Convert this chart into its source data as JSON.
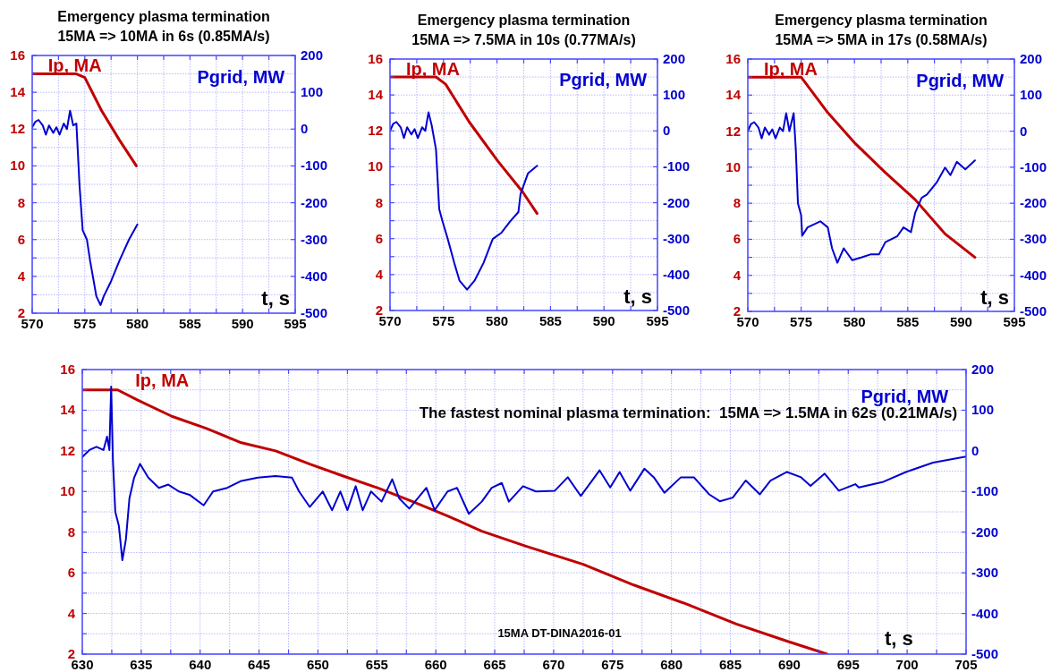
{
  "chart_data": [
    {
      "type": "line",
      "title": "Emergency plasma termination",
      "subtitle": "15MA => 10MA in 6s (0.85MA/s)",
      "xlabel": "t, s",
      "grid": true,
      "legend": "top",
      "xlim": [
        570,
        595
      ],
      "xticks": [
        570,
        {
          "value": 572.5,
          "label": null
        },
        575,
        {
          "value": 577.5,
          "label": null
        },
        580,
        {
          "value": 582.5,
          "label": null
        },
        585,
        {
          "value": 587.5,
          "label": null
        },
        590,
        {
          "value": 592.5,
          "label": null
        },
        595
      ],
      "ylim": [
        2,
        16
      ],
      "yticks": [
        2,
        {
          "value": 3,
          "label": null
        },
        4,
        {
          "value": 5,
          "label": null
        },
        6,
        {
          "value": 7,
          "label": null
        },
        8,
        {
          "value": 9,
          "label": null
        },
        10,
        {
          "value": 11,
          "label": null
        },
        12,
        {
          "value": 13,
          "label": null
        },
        14,
        {
          "value": 15,
          "label": null
        },
        16
      ],
      "y2lim": [
        -500,
        200
      ],
      "y2ticks": [
        -500,
        -400,
        -300,
        -200,
        -100,
        0,
        100,
        200
      ],
      "series": [
        {
          "name": "Ip, MA",
          "color": "#c00000",
          "x": [
            570,
            574.2,
            575,
            576.6,
            578.3,
            579.9
          ],
          "values": [
            15,
            15,
            14.8,
            13.0,
            11.4,
            10.0
          ]
        },
        {
          "name": "Pgrid, MW",
          "color": "#0000d0",
          "axis": "y2",
          "x": [
            570,
            570.3,
            570.6,
            571,
            571.3,
            571.6,
            572,
            572.3,
            572.6,
            573,
            573.3,
            573.6,
            573.9,
            574.2,
            574.5,
            574.8,
            575.2,
            575.5,
            576.1,
            576.5,
            576.8,
            577.5,
            578.3,
            579.2,
            580
          ],
          "values": [
            5,
            20,
            25,
            10,
            -15,
            10,
            -10,
            5,
            -15,
            15,
            0,
            50,
            10,
            15,
            -153,
            -275,
            -300,
            -357,
            -454,
            -478,
            -454,
            -413,
            -357,
            -300,
            -259
          ]
        }
      ]
    },
    {
      "type": "line",
      "title": "Emergency plasma termination",
      "subtitle": "15MA => 7.5MA in 10s (0.77MA/s)",
      "xlabel": "t, s",
      "grid": true,
      "legend": "top",
      "xlim": [
        570,
        595
      ],
      "xticks": [
        570,
        {
          "value": 572.5,
          "label": null
        },
        575,
        {
          "value": 577.5,
          "label": null
        },
        580,
        {
          "value": 582.5,
          "label": null
        },
        585,
        {
          "value": 587.5,
          "label": null
        },
        590,
        {
          "value": 592.5,
          "label": null
        },
        595
      ],
      "ylim": [
        2,
        16
      ],
      "yticks": [
        2,
        {
          "value": 3,
          "label": null
        },
        4,
        {
          "value": 5,
          "label": null
        },
        6,
        {
          "value": 7,
          "label": null
        },
        8,
        {
          "value": 9,
          "label": null
        },
        10,
        {
          "value": 11,
          "label": null
        },
        12,
        {
          "value": 13,
          "label": null
        },
        14,
        {
          "value": 15,
          "label": null
        },
        16
      ],
      "y2lim": [
        -500,
        200
      ],
      "y2ticks": [
        -500,
        -400,
        -300,
        -200,
        -100,
        0,
        100,
        200
      ],
      "series": [
        {
          "name": "Ip, MA",
          "color": "#c00000",
          "x": [
            570,
            574.3,
            575.2,
            577.4,
            580.1,
            582.4,
            583.75
          ],
          "values": [
            15,
            15,
            14.6,
            12.5,
            10.3,
            8.6,
            7.4
          ]
        },
        {
          "name": "Pgrid, MW",
          "color": "#0000d0",
          "axis": "y2",
          "x": [
            570,
            570.3,
            570.6,
            571,
            571.3,
            571.6,
            572,
            572.3,
            572.6,
            573,
            573.3,
            573.6,
            573.9,
            574.3,
            574.6,
            574.9,
            575.4,
            576,
            576.5,
            577.2,
            577.9,
            578.75,
            579.6,
            580.4,
            581.25,
            582,
            582.2,
            582.9,
            583.75
          ],
          "values": [
            0,
            20,
            25,
            10,
            -20,
            10,
            -10,
            5,
            -20,
            10,
            0,
            52,
            15,
            -52,
            -218,
            -251,
            -301,
            -367,
            -417,
            -442,
            -417,
            -367,
            -301,
            -284,
            -251,
            -226,
            -176,
            -118,
            -97
          ]
        }
      ]
    },
    {
      "type": "line",
      "title": "Emergency plasma termination",
      "subtitle": "15MA => 5MA in 17s (0.58MA/s)",
      "xlabel": "t, s",
      "grid": true,
      "legend": "top",
      "xlim": [
        570,
        595
      ],
      "xticks": [
        570,
        {
          "value": 572.5,
          "label": null
        },
        575,
        {
          "value": 577.5,
          "label": null
        },
        580,
        {
          "value": 582.5,
          "label": null
        },
        585,
        {
          "value": 587.5,
          "label": null
        },
        590,
        {
          "value": 592.5,
          "label": null
        },
        595
      ],
      "ylim": [
        2,
        16
      ],
      "yticks": [
        2,
        {
          "value": 3,
          "label": null
        },
        4,
        {
          "value": 5,
          "label": null
        },
        6,
        {
          "value": 7,
          "label": null
        },
        8,
        {
          "value": 9,
          "label": null
        },
        10,
        {
          "value": 11,
          "label": null
        },
        12,
        {
          "value": 13,
          "label": null
        },
        14,
        {
          "value": 15,
          "label": null
        },
        16
      ],
      "y2lim": [
        -500,
        200
      ],
      "y2ticks": [
        -500,
        -400,
        -300,
        -200,
        -100,
        0,
        100,
        200
      ],
      "series": [
        {
          "name": "Ip, MA",
          "color": "#c00000",
          "x": [
            570,
            575,
            577.4,
            580.1,
            582.9,
            585.7,
            588.5,
            591.3
          ],
          "values": [
            15,
            15,
            13.1,
            11.3,
            9.7,
            8.2,
            6.3,
            5.0
          ]
        },
        {
          "name": "Pgrid, MW",
          "color": "#0000d0",
          "axis": "y2",
          "x": [
            570,
            570.3,
            570.6,
            571,
            571.3,
            571.6,
            572,
            572.3,
            572.6,
            573,
            573.3,
            573.6,
            573.9,
            574.3,
            574.5,
            574.7,
            575,
            575.1,
            575.6,
            576.8,
            577.5,
            577.9,
            578.4,
            579,
            579.8,
            580.7,
            581.5,
            582.3,
            582.9,
            584,
            584.6,
            585.3,
            585.7,
            586.3,
            586.8,
            587.7,
            588.5,
            589,
            589.6,
            590.4,
            591.3
          ],
          "values": [
            0,
            20,
            25,
            10,
            -20,
            10,
            -10,
            5,
            -20,
            10,
            0,
            50,
            0,
            50,
            -50,
            -200,
            -233,
            -290,
            -267,
            -250,
            -267,
            -325,
            -365,
            -325,
            -358,
            -350,
            -342,
            -342,
            -308,
            -292,
            -267,
            -280,
            -226,
            -185,
            -176,
            -143,
            -101,
            -122,
            -85,
            -106,
            -81
          ]
        }
      ]
    },
    {
      "type": "line",
      "xlabel": "t, s",
      "grid": true,
      "legend": "top",
      "annotations": [
        "The fastest nominal plasma termination:  15MA => 1.5MA in 62s (0.21MA/s)",
        "15MA DT-DINA2016-01"
      ],
      "xlim": [
        630,
        705
      ],
      "xticks": [
        630,
        {
          "value": 632.5,
          "label": null
        },
        635,
        {
          "value": 637.5,
          "label": null
        },
        640,
        {
          "value": 642.5,
          "label": null
        },
        645,
        {
          "value": 647.5,
          "label": null
        },
        650,
        {
          "value": 652.5,
          "label": null
        },
        655,
        {
          "value": 657.5,
          "label": null
        },
        660,
        {
          "value": 662.5,
          "label": null
        },
        665,
        {
          "value": 667.5,
          "label": null
        },
        670,
        {
          "value": 672.5,
          "label": null
        },
        675,
        {
          "value": 677.5,
          "label": null
        },
        680,
        {
          "value": 682.5,
          "label": null
        },
        685,
        {
          "value": 687.5,
          "label": null
        },
        690,
        {
          "value": 692.5,
          "label": null
        },
        695,
        {
          "value": 697.5,
          "label": null
        },
        700,
        {
          "value": 702.5,
          "label": null
        },
        705
      ],
      "ylim": [
        2,
        16
      ],
      "yticks": [
        2,
        {
          "value": 3,
          "label": null
        },
        4,
        {
          "value": 5,
          "label": null
        },
        6,
        {
          "value": 7,
          "label": null
        },
        8,
        {
          "value": 9,
          "label": null
        },
        10,
        {
          "value": 11,
          "label": null
        },
        12,
        {
          "value": 13,
          "label": null
        },
        14,
        {
          "value": 15,
          "label": null
        },
        16
      ],
      "y2lim": [
        -500,
        200
      ],
      "y2ticks": [
        -500,
        -400,
        -300,
        -200,
        -100,
        0,
        100,
        200
      ],
      "series": [
        {
          "name": "Ip, MA",
          "color": "#c00000",
          "x": [
            630,
            632.5,
            633,
            634.7,
            637.6,
            640.55,
            643.5,
            646.4,
            649.3,
            652.2,
            655.2,
            658.05,
            661,
            663.9,
            667.7,
            672.5,
            676.8,
            681.1,
            685.5,
            689.8,
            693.2
          ],
          "values": [
            15,
            15,
            15,
            14.5,
            13.7,
            13.1,
            12.4,
            12.0,
            11.35,
            10.75,
            10.15,
            9.5,
            8.8,
            8.05,
            7.3,
            6.42,
            5.4,
            4.5,
            3.48,
            2.64,
            2.0
          ]
        },
        {
          "name": "Pgrid, MW",
          "color": "#0000d0",
          "axis": "y2",
          "x": [
            630,
            630.6,
            631.2,
            631.8,
            632.1,
            632.3,
            632.45,
            632.6,
            632.8,
            633.1,
            633.4,
            633.7,
            634,
            634.4,
            634.9,
            635.6,
            636.5,
            637.3,
            638.2,
            639.1,
            640.3,
            641.1,
            642.3,
            643.5,
            644.9,
            646.4,
            647.8,
            648.4,
            649.3,
            650.4,
            651.2,
            651.9,
            652.5,
            653.2,
            653.8,
            654.5,
            655.4,
            656.3,
            656.9,
            657.75,
            659.2,
            659.9,
            661,
            661.8,
            662.8,
            663.9,
            664.75,
            665.6,
            666.2,
            667.4,
            668.5,
            670.1,
            671.2,
            672.3,
            673.9,
            674.8,
            675.6,
            676.5,
            677.7,
            678.5,
            679.4,
            680.8,
            681.9,
            683.2,
            684.1,
            685.2,
            686.3,
            687.5,
            688.4,
            689.8,
            691,
            691.8,
            693,
            694.2,
            695.6,
            695.9,
            697.9,
            699.9,
            702.2,
            705
          ],
          "values": [
            -15,
            2,
            10,
            2,
            35,
            2,
            158,
            -24,
            -150,
            -184,
            -269,
            -218,
            -117,
            -66,
            -32,
            -66,
            -91,
            -83,
            -100,
            -108,
            -134,
            -100,
            -91,
            -74,
            -66,
            -62,
            -66,
            -100,
            -138,
            -100,
            -146,
            -100,
            -146,
            -87,
            -146,
            -100,
            -125,
            -70,
            -117,
            -142,
            -91,
            -146,
            -100,
            -91,
            -155,
            -125,
            -91,
            -79,
            -125,
            -87,
            -100,
            -98,
            -65,
            -111,
            -48,
            -90,
            -52,
            -98,
            -44,
            -65,
            -103,
            -65,
            -65,
            -107,
            -124,
            -115,
            -73,
            -107,
            -73,
            -52,
            -65,
            -86,
            -56,
            -98,
            -82,
            -90,
            -77,
            -52,
            -29,
            -14
          ]
        }
      ]
    }
  ]
}
